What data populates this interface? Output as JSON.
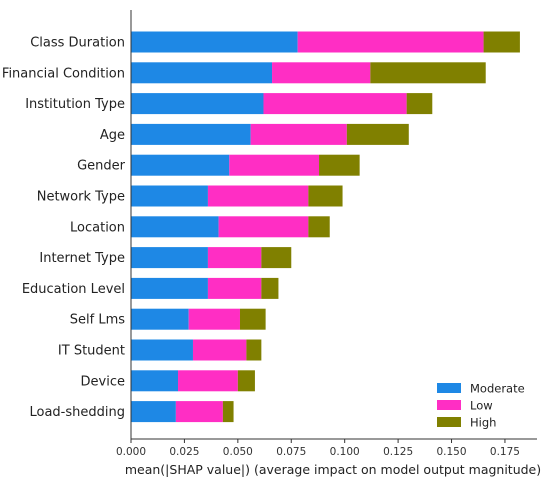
{
  "chart_data": {
    "type": "bar",
    "orientation": "horizontal",
    "stacked": true,
    "xlabel": "mean(|SHAP value|) (average impact on model output magnitude)",
    "xlim": [
      0,
      0.19
    ],
    "xticks": [
      "0.000",
      "0.025",
      "0.050",
      "0.075",
      "0.100",
      "0.125",
      "0.150",
      "0.175"
    ],
    "categories": [
      "Class Duration",
      "Financial Condition",
      "Institution Type",
      "Age",
      "Gender",
      "Network Type",
      "Location",
      "Internet Type",
      "Education Level",
      "Self Lms",
      "IT Student",
      "Device",
      "Load-shedding"
    ],
    "series": [
      {
        "name": "Moderate",
        "color": "#1e88e5",
        "values": [
          0.078,
          0.066,
          0.062,
          0.056,
          0.046,
          0.036,
          0.041,
          0.036,
          0.036,
          0.027,
          0.029,
          0.022,
          0.021
        ]
      },
      {
        "name": "Low",
        "color": "#ff2ec4",
        "values": [
          0.087,
          0.046,
          0.067,
          0.045,
          0.042,
          0.047,
          0.042,
          0.025,
          0.025,
          0.024,
          0.025,
          0.028,
          0.022
        ]
      },
      {
        "name": "High",
        "color": "#808000",
        "values": [
          0.017,
          0.054,
          0.012,
          0.029,
          0.019,
          0.016,
          0.01,
          0.014,
          0.008,
          0.012,
          0.007,
          0.008,
          0.005
        ]
      }
    ],
    "legend": {
      "placement": "bottom-right",
      "entries": [
        "Moderate",
        "Low",
        "High"
      ]
    },
    "grid": false
  }
}
